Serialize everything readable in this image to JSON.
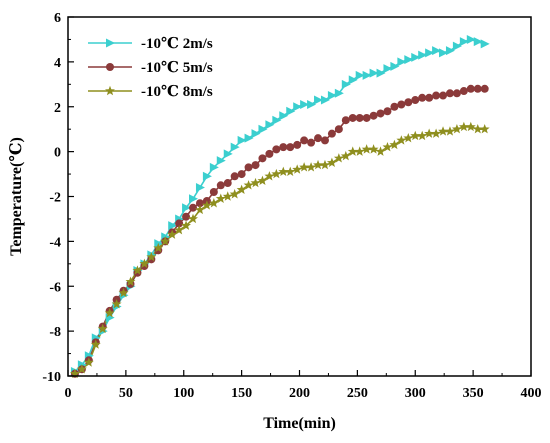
{
  "chart_data": {
    "type": "line",
    "xlabel": "Time(min)",
    "ylabel": "Temperature(℃)",
    "xlim": [
      0,
      400
    ],
    "ylim": [
      -10,
      6
    ],
    "x_ticks": [
      0,
      50,
      100,
      150,
      200,
      250,
      300,
      350,
      400
    ],
    "y_ticks": [
      -10,
      -8,
      -6,
      -4,
      -2,
      0,
      2,
      4,
      6
    ],
    "grid": false,
    "legend_position": "top-left",
    "x": [
      6,
      12,
      18,
      24,
      30,
      36,
      42,
      48,
      54,
      60,
      66,
      72,
      78,
      84,
      90,
      96,
      102,
      108,
      114,
      120,
      126,
      132,
      138,
      144,
      150,
      156,
      162,
      168,
      174,
      180,
      186,
      192,
      198,
      204,
      210,
      216,
      222,
      228,
      234,
      240,
      246,
      252,
      258,
      264,
      270,
      276,
      282,
      288,
      294,
      300,
      306,
      312,
      318,
      324,
      330,
      336,
      342,
      348,
      354,
      360
    ],
    "series": [
      {
        "name": "-10℃ 2m/s",
        "color": "#3bcfcf",
        "marker": "triangle-right",
        "values": [
          -9.8,
          -9.5,
          -9.1,
          -8.3,
          -8.0,
          -7.4,
          -6.9,
          -6.4,
          -6.0,
          -5.3,
          -5.0,
          -4.6,
          -4.1,
          -3.8,
          -3.3,
          -3.0,
          -2.5,
          -2.1,
          -1.6,
          -1.1,
          -0.7,
          -0.4,
          -0.1,
          0.2,
          0.5,
          0.6,
          0.8,
          1.0,
          1.2,
          1.4,
          1.6,
          1.8,
          2.0,
          2.1,
          2.1,
          2.3,
          2.3,
          2.5,
          2.6,
          3.0,
          3.2,
          3.4,
          3.4,
          3.5,
          3.5,
          3.7,
          3.8,
          4.0,
          4.1,
          4.2,
          4.3,
          4.4,
          4.5,
          4.4,
          4.5,
          4.7,
          4.9,
          5.0,
          4.9,
          4.8
        ]
      },
      {
        "name": "-10℃ 5m/s",
        "color": "#8b3a3a",
        "marker": "circle",
        "values": [
          -9.9,
          -9.7,
          -9.3,
          -8.5,
          -7.8,
          -7.1,
          -6.6,
          -6.2,
          -5.9,
          -5.4,
          -5.1,
          -4.8,
          -4.4,
          -4.0,
          -3.6,
          -3.2,
          -2.9,
          -2.5,
          -2.3,
          -2.2,
          -1.8,
          -1.5,
          -1.4,
          -1.1,
          -1.0,
          -0.7,
          -0.6,
          -0.3,
          -0.1,
          0.1,
          0.2,
          0.2,
          0.3,
          0.5,
          0.4,
          0.6,
          0.5,
          0.8,
          1.0,
          1.4,
          1.5,
          1.5,
          1.5,
          1.6,
          1.7,
          1.8,
          2.0,
          2.1,
          2.2,
          2.3,
          2.4,
          2.4,
          2.5,
          2.5,
          2.6,
          2.6,
          2.7,
          2.8,
          2.8,
          2.8
        ]
      },
      {
        "name": "-10℃ 8m/s",
        "color": "#8f8f1f",
        "marker": "star",
        "values": [
          -9.9,
          -9.7,
          -9.4,
          -8.6,
          -7.9,
          -7.2,
          -6.8,
          -6.3,
          -5.8,
          -5.3,
          -5.0,
          -4.7,
          -4.3,
          -4.0,
          -3.7,
          -3.5,
          -3.3,
          -3.0,
          -2.6,
          -2.4,
          -2.3,
          -2.1,
          -2.0,
          -1.9,
          -1.7,
          -1.5,
          -1.4,
          -1.3,
          -1.1,
          -1.0,
          -0.9,
          -0.9,
          -0.8,
          -0.7,
          -0.7,
          -0.6,
          -0.6,
          -0.5,
          -0.3,
          -0.2,
          0.0,
          0.0,
          0.1,
          0.1,
          0.0,
          0.2,
          0.3,
          0.5,
          0.6,
          0.7,
          0.7,
          0.8,
          0.8,
          0.9,
          0.9,
          1.0,
          1.1,
          1.1,
          1.0,
          1.0
        ]
      }
    ]
  }
}
